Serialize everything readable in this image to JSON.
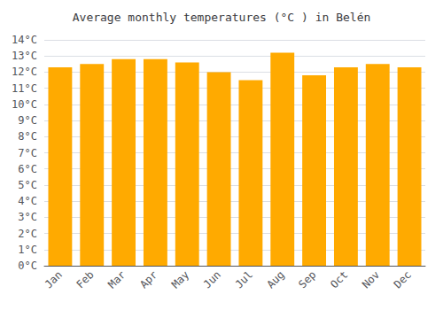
{
  "chart_data": {
    "type": "bar",
    "title": "Average monthly temperatures (°C ) in Belén",
    "categories": [
      "Jan",
      "Feb",
      "Mar",
      "Apr",
      "May",
      "Jun",
      "Jul",
      "Aug",
      "Sep",
      "Oct",
      "Nov",
      "Dec"
    ],
    "values": [
      12.3,
      12.5,
      12.8,
      12.8,
      12.6,
      12.0,
      11.5,
      13.2,
      11.8,
      12.3,
      12.5,
      12.3
    ],
    "color": "#FFAA00",
    "ylim": [
      0,
      14
    ],
    "yticks": [
      {
        "value": 0,
        "label": "0°C"
      },
      {
        "value": 1,
        "label": "1°C"
      },
      {
        "value": 2,
        "label": "2°C"
      },
      {
        "value": 3,
        "label": "3°C"
      },
      {
        "value": 4,
        "label": "4°C"
      },
      {
        "value": 5,
        "label": "5°C"
      },
      {
        "value": 6,
        "label": "6°C"
      },
      {
        "value": 7,
        "label": "7°C"
      },
      {
        "value": 8,
        "label": "8°C"
      },
      {
        "value": 9,
        "label": "9°C"
      },
      {
        "value": 10,
        "label": "10°C"
      },
      {
        "value": 11,
        "label": "11°C"
      },
      {
        "value": 12,
        "label": "12°C"
      },
      {
        "value": 13,
        "label": "13°C"
      },
      {
        "value": 14,
        "label": "14°C"
      }
    ],
    "grid": true
  }
}
